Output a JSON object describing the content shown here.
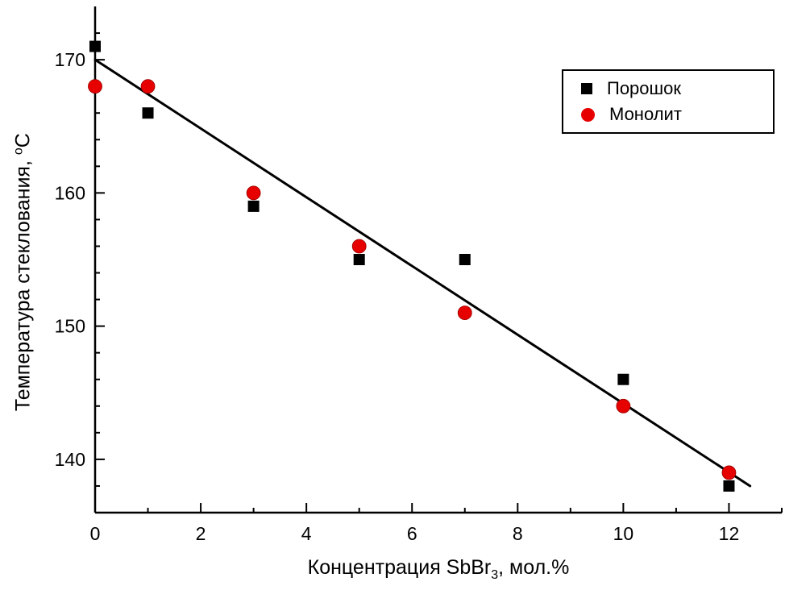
{
  "chart_data": {
    "type": "scatter",
    "title": "",
    "xlabel": {
      "prefix": "Концентрация SbBr",
      "sub": "3",
      "suffix": ", мол.%"
    },
    "ylabel": {
      "prefix": "Температура стеклования, ",
      "sup": "o",
      "suffix": "C"
    },
    "xlim": [
      0,
      13
    ],
    "ylim": [
      136,
      174
    ],
    "x_major_ticks": [
      0,
      2,
      4,
      6,
      8,
      10,
      12
    ],
    "x_minor_ticks": [
      1,
      3,
      5,
      7,
      9,
      11,
      13
    ],
    "y_major_ticks": [
      140,
      150,
      160,
      170
    ],
    "y_minor_ticks": [
      138,
      142,
      144,
      146,
      148,
      152,
      154,
      156,
      158,
      162,
      164,
      166,
      168,
      172
    ],
    "grid": false,
    "legend_position": "top-right",
    "series": [
      {
        "name": "Порошок",
        "marker": "square",
        "color": "#000000",
        "points": [
          [
            0,
            171
          ],
          [
            1,
            166
          ],
          [
            3,
            159
          ],
          [
            5,
            155
          ],
          [
            7,
            155
          ],
          [
            10,
            146
          ],
          [
            12,
            138
          ]
        ]
      },
      {
        "name": "Монолит",
        "marker": "circle",
        "color": "#e60000",
        "points": [
          [
            0,
            168
          ],
          [
            1,
            168
          ],
          [
            3,
            160
          ],
          [
            5,
            156
          ],
          [
            7,
            151
          ],
          [
            10,
            144
          ],
          [
            12,
            139
          ]
        ]
      }
    ],
    "fit_line": {
      "color": "#000000",
      "width": 3,
      "points": [
        [
          0,
          170
        ],
        [
          12.4,
          138
        ]
      ]
    }
  }
}
